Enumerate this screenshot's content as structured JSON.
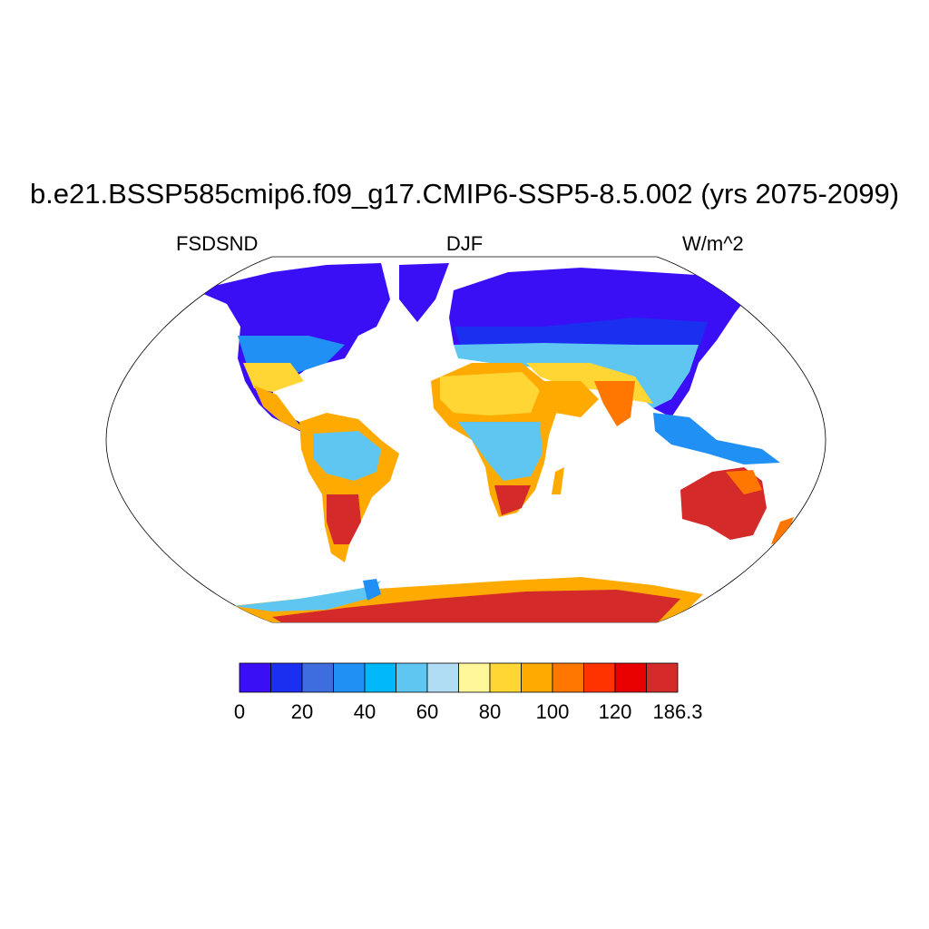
{
  "title": "b.e21.BSSP585cmip6.f09_g17.CMIP6-SSP5-8.5.002 (yrs 2075-2099)",
  "left_string": "FSDSND",
  "center_string": "DJF",
  "right_string": "W/m^2",
  "colorbar": {
    "colors": [
      "#3b0ff5",
      "#1a2ff0",
      "#3e6de0",
      "#2090f5",
      "#00b8fa",
      "#5fc6f2",
      "#b0ddf3",
      "#fff799",
      "#ffd633",
      "#ffaa00",
      "#ff7700",
      "#ff3300",
      "#e80000",
      "#d42a2a"
    ],
    "tick_labels": [
      "0",
      "20",
      "40",
      "60",
      "80",
      "100",
      "120",
      "186.3"
    ]
  },
  "map_layers": {
    "polar_blue_band": "#3b0ff5",
    "mid_blue_band": "#1a2ff0",
    "light_blue_band": "#5fc6f2",
    "desert_yellow": "#ffd633",
    "warm_orange": "#ffaa00",
    "hot_red": "#d42a2a"
  }
}
